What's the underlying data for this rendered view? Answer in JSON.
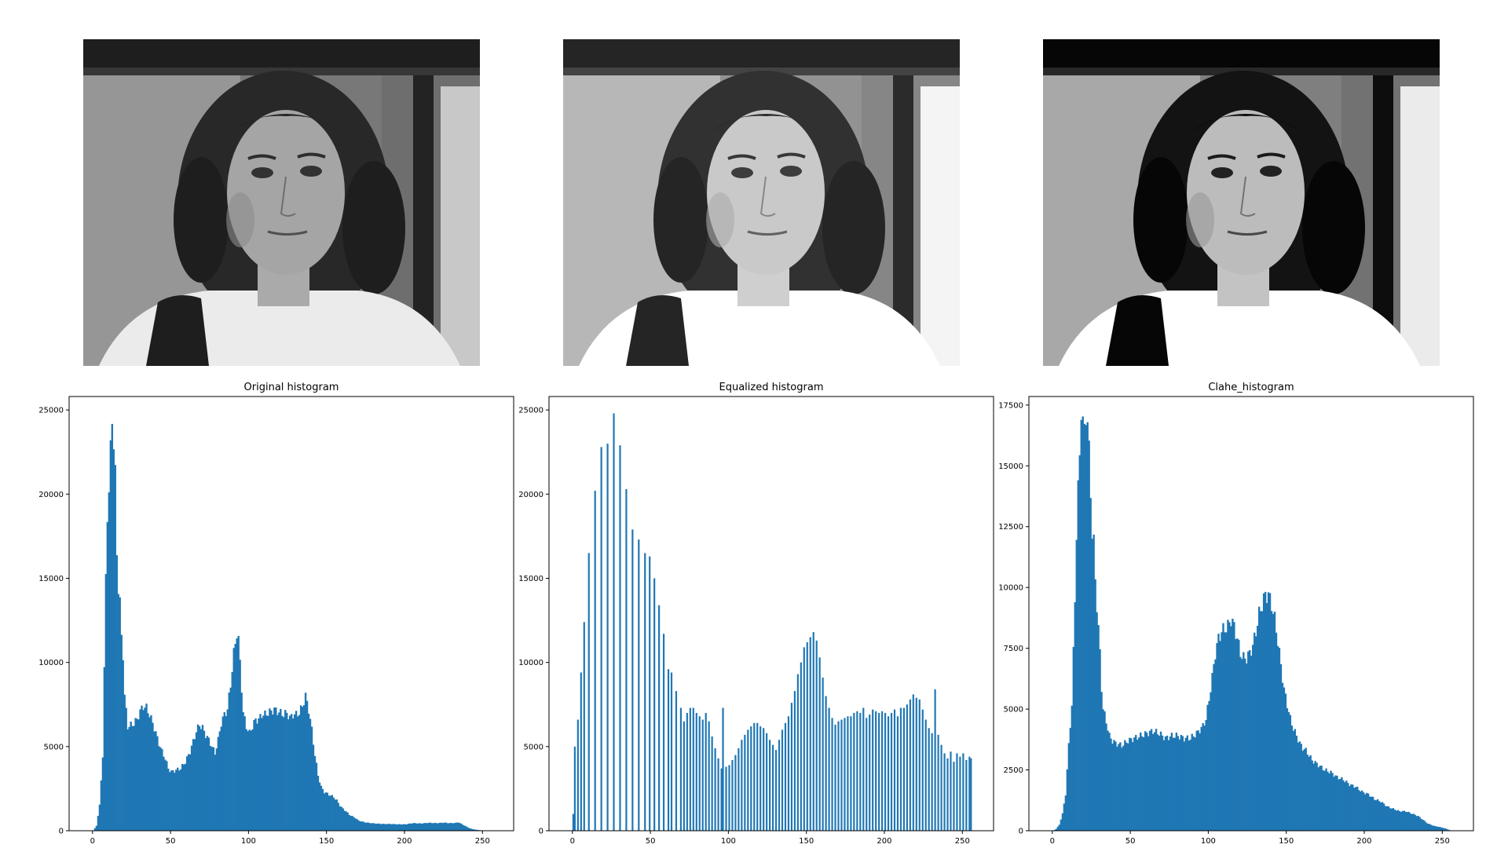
{
  "photos": [
    {
      "style": "original"
    },
    {
      "style": "equalized"
    },
    {
      "style": "clahe"
    }
  ],
  "chart_data": [
    {
      "type": "bar",
      "title": "Original histogram",
      "bar_color": "#1f77b4",
      "xlim": [
        -15,
        270
      ],
      "ylim": [
        0,
        25800
      ],
      "xticks": [
        0,
        50,
        100,
        150,
        200,
        250
      ],
      "yticks": [
        0,
        5000,
        10000,
        15000,
        20000,
        25000
      ],
      "curve": [
        [
          0,
          0
        ],
        [
          2,
          300
        ],
        [
          4,
          1500
        ],
        [
          6,
          4500
        ],
        [
          7,
          9500
        ],
        [
          8,
          15000
        ],
        [
          9,
          19000
        ],
        [
          10,
          20000
        ],
        [
          11,
          22500
        ],
        [
          12,
          24800
        ],
        [
          13,
          23000
        ],
        [
          14,
          21000
        ],
        [
          15,
          16500
        ],
        [
          16,
          14500
        ],
        [
          17,
          13500
        ],
        [
          18,
          11500
        ],
        [
          19,
          10500
        ],
        [
          20,
          8000
        ],
        [
          22,
          6200
        ],
        [
          25,
          6300
        ],
        [
          28,
          6600
        ],
        [
          30,
          7100
        ],
        [
          32,
          7400
        ],
        [
          34,
          7300
        ],
        [
          36,
          6900
        ],
        [
          38,
          6400
        ],
        [
          40,
          5800
        ],
        [
          42,
          5200
        ],
        [
          44,
          4700
        ],
        [
          46,
          4300
        ],
        [
          48,
          3700
        ],
        [
          50,
          3500
        ],
        [
          53,
          3600
        ],
        [
          56,
          3700
        ],
        [
          59,
          4100
        ],
        [
          62,
          4700
        ],
        [
          64,
          5300
        ],
        [
          66,
          5900
        ],
        [
          68,
          6300
        ],
        [
          70,
          6100
        ],
        [
          72,
          5700
        ],
        [
          74,
          5400
        ],
        [
          76,
          5000
        ],
        [
          78,
          4600
        ],
        [
          80,
          5400
        ],
        [
          82,
          6400
        ],
        [
          84,
          6900
        ],
        [
          86,
          7200
        ],
        [
          88,
          8700
        ],
        [
          90,
          10500
        ],
        [
          92,
          11800
        ],
        [
          93,
          11300
        ],
        [
          94,
          10000
        ],
        [
          96,
          7000
        ],
        [
          98,
          6200
        ],
        [
          100,
          5800
        ],
        [
          102,
          6200
        ],
        [
          104,
          6600
        ],
        [
          106,
          6600
        ],
        [
          108,
          6900
        ],
        [
          110,
          6900
        ],
        [
          112,
          7000
        ],
        [
          114,
          7100
        ],
        [
          116,
          7200
        ],
        [
          118,
          7100
        ],
        [
          120,
          7000
        ],
        [
          122,
          6900
        ],
        [
          124,
          7000
        ],
        [
          126,
          6700
        ],
        [
          128,
          6900
        ],
        [
          130,
          6900
        ],
        [
          132,
          7000
        ],
        [
          134,
          7400
        ],
        [
          136,
          8000
        ],
        [
          138,
          7200
        ],
        [
          140,
          6000
        ],
        [
          142,
          4500
        ],
        [
          144,
          3300
        ],
        [
          146,
          2600
        ],
        [
          148,
          2300
        ],
        [
          150,
          2200
        ],
        [
          152,
          2100
        ],
        [
          154,
          2000
        ],
        [
          156,
          1800
        ],
        [
          158,
          1500
        ],
        [
          160,
          1300
        ],
        [
          162,
          1150
        ],
        [
          164,
          950
        ],
        [
          166,
          850
        ],
        [
          168,
          750
        ],
        [
          170,
          600
        ],
        [
          174,
          500
        ],
        [
          178,
          450
        ],
        [
          182,
          420
        ],
        [
          186,
          400
        ],
        [
          190,
          400
        ],
        [
          196,
          380
        ],
        [
          200,
          380
        ],
        [
          205,
          450
        ],
        [
          210,
          430
        ],
        [
          215,
          470
        ],
        [
          220,
          450
        ],
        [
          225,
          480
        ],
        [
          228,
          450
        ],
        [
          232,
          460
        ],
        [
          234,
          500
        ],
        [
          236,
          400
        ],
        [
          238,
          300
        ],
        [
          240,
          200
        ],
        [
          242,
          120
        ],
        [
          244,
          80
        ],
        [
          246,
          50
        ],
        [
          248,
          30
        ],
        [
          250,
          20
        ],
        [
          255,
          0
        ]
      ]
    },
    {
      "type": "bar",
      "title": "Equalized histogram",
      "bar_color": "#1f77b4",
      "xlim": [
        -15,
        270
      ],
      "ylim": [
        0,
        25800
      ],
      "xticks": [
        0,
        50,
        100,
        150,
        200,
        250
      ],
      "yticks": [
        0,
        5000,
        10000,
        15000,
        20000,
        25000
      ],
      "spikes": [
        [
          0,
          1000
        ],
        [
          1,
          5000
        ],
        [
          3,
          6600
        ],
        [
          5,
          9400
        ],
        [
          7,
          12400
        ],
        [
          10,
          16500
        ],
        [
          14,
          20200
        ],
        [
          18,
          22800
        ],
        [
          22,
          23000
        ],
        [
          26,
          24800
        ],
        [
          30,
          22900
        ],
        [
          34,
          20300
        ],
        [
          38,
          17900
        ],
        [
          42,
          17300
        ],
        [
          46,
          16500
        ],
        [
          49,
          16300
        ],
        [
          52,
          15000
        ],
        [
          55,
          13400
        ],
        [
          58,
          11700
        ],
        [
          61,
          9600
        ],
        [
          63,
          9400
        ],
        [
          66,
          8300
        ],
        [
          69,
          7300
        ],
        [
          71,
          6500
        ],
        [
          73,
          7000
        ],
        [
          75,
          7300
        ],
        [
          77,
          7300
        ],
        [
          79,
          7000
        ],
        [
          81,
          6800
        ],
        [
          83,
          6600
        ],
        [
          85,
          7000
        ],
        [
          87,
          6500
        ],
        [
          89,
          5600
        ],
        [
          91,
          4900
        ],
        [
          93,
          4300
        ],
        [
          95,
          3700
        ],
        [
          96,
          7300
        ],
        [
          98,
          3800
        ],
        [
          100,
          3900
        ],
        [
          102,
          4200
        ],
        [
          104,
          4500
        ],
        [
          106,
          4900
        ],
        [
          108,
          5400
        ],
        [
          110,
          5700
        ],
        [
          112,
          6000
        ],
        [
          114,
          6200
        ],
        [
          116,
          6400
        ],
        [
          118,
          6400
        ],
        [
          120,
          6200
        ],
        [
          122,
          6100
        ],
        [
          124,
          5800
        ],
        [
          126,
          5400
        ],
        [
          128,
          5100
        ],
        [
          130,
          4800
        ],
        [
          132,
          5400
        ],
        [
          134,
          6000
        ],
        [
          136,
          6400
        ],
        [
          138,
          6800
        ],
        [
          140,
          7600
        ],
        [
          142,
          8300
        ],
        [
          144,
          9300
        ],
        [
          146,
          10000
        ],
        [
          148,
          10900
        ],
        [
          150,
          11200
        ],
        [
          152,
          11500
        ],
        [
          154,
          11800
        ],
        [
          156,
          11300
        ],
        [
          158,
          10300
        ],
        [
          160,
          9100
        ],
        [
          162,
          8000
        ],
        [
          164,
          7300
        ],
        [
          166,
          6700
        ],
        [
          168,
          6300
        ],
        [
          170,
          6500
        ],
        [
          172,
          6600
        ],
        [
          174,
          6700
        ],
        [
          176,
          6800
        ],
        [
          178,
          6800
        ],
        [
          180,
          7000
        ],
        [
          182,
          7100
        ],
        [
          184,
          7000
        ],
        [
          186,
          7300
        ],
        [
          188,
          6700
        ],
        [
          190,
          6900
        ],
        [
          192,
          7200
        ],
        [
          194,
          7100
        ],
        [
          196,
          7000
        ],
        [
          198,
          7100
        ],
        [
          200,
          7000
        ],
        [
          202,
          6800
        ],
        [
          204,
          7000
        ],
        [
          206,
          7200
        ],
        [
          208,
          6800
        ],
        [
          210,
          7300
        ],
        [
          212,
          7300
        ],
        [
          214,
          7500
        ],
        [
          216,
          7800
        ],
        [
          218,
          8100
        ],
        [
          220,
          7900
        ],
        [
          222,
          7800
        ],
        [
          224,
          7200
        ],
        [
          226,
          6600
        ],
        [
          228,
          6100
        ],
        [
          230,
          5800
        ],
        [
          232,
          8400
        ],
        [
          234,
          5700
        ],
        [
          236,
          5100
        ],
        [
          238,
          4600
        ],
        [
          240,
          4300
        ],
        [
          242,
          4700
        ],
        [
          244,
          4100
        ],
        [
          246,
          4600
        ],
        [
          248,
          4400
        ],
        [
          250,
          4600
        ],
        [
          252,
          4200
        ],
        [
          254,
          4400
        ],
        [
          255,
          4300
        ]
      ]
    },
    {
      "type": "bar",
      "title": "Clahe_histogram",
      "bar_color": "#1f77b4",
      "xlim": [
        -15,
        270
      ],
      "ylim": [
        0,
        17850
      ],
      "xticks": [
        0,
        50,
        100,
        150,
        200,
        250
      ],
      "yticks": [
        0,
        2500,
        5000,
        7500,
        10000,
        12500,
        15000,
        17500
      ],
      "curve": [
        [
          0,
          0
        ],
        [
          2,
          80
        ],
        [
          4,
          250
        ],
        [
          6,
          700
        ],
        [
          8,
          1500
        ],
        [
          10,
          3500
        ],
        [
          12,
          5200
        ],
        [
          13,
          7300
        ],
        [
          14,
          9500
        ],
        [
          15,
          12300
        ],
        [
          16,
          14000
        ],
        [
          17,
          15300
        ],
        [
          18,
          17500
        ],
        [
          19,
          16800
        ],
        [
          20,
          16300
        ],
        [
          21,
          17200
        ],
        [
          22,
          16900
        ],
        [
          23,
          15500
        ],
        [
          24,
          13900
        ],
        [
          25,
          12300
        ],
        [
          26,
          11800
        ],
        [
          27,
          10300
        ],
        [
          28,
          9300
        ],
        [
          29,
          8300
        ],
        [
          30,
          7300
        ],
        [
          31,
          5900
        ],
        [
          32,
          5000
        ],
        [
          34,
          4500
        ],
        [
          36,
          3900
        ],
        [
          38,
          3700
        ],
        [
          40,
          3600
        ],
        [
          44,
          3500
        ],
        [
          48,
          3700
        ],
        [
          52,
          3800
        ],
        [
          56,
          3900
        ],
        [
          60,
          4000
        ],
        [
          64,
          4100
        ],
        [
          68,
          4000
        ],
        [
          72,
          3800
        ],
        [
          76,
          3900
        ],
        [
          80,
          3900
        ],
        [
          84,
          3800
        ],
        [
          88,
          3800
        ],
        [
          92,
          4000
        ],
        [
          96,
          4300
        ],
        [
          98,
          4600
        ],
        [
          100,
          5400
        ],
        [
          102,
          6300
        ],
        [
          104,
          7300
        ],
        [
          106,
          7900
        ],
        [
          108,
          8200
        ],
        [
          110,
          8300
        ],
        [
          112,
          8400
        ],
        [
          114,
          8700
        ],
        [
          116,
          8400
        ],
        [
          118,
          7900
        ],
        [
          120,
          7300
        ],
        [
          122,
          7100
        ],
        [
          124,
          7100
        ],
        [
          126,
          7300
        ],
        [
          128,
          7600
        ],
        [
          130,
          8200
        ],
        [
          132,
          8900
        ],
        [
          134,
          9300
        ],
        [
          136,
          9700
        ],
        [
          138,
          9700
        ],
        [
          140,
          9300
        ],
        [
          142,
          8700
        ],
        [
          144,
          7800
        ],
        [
          146,
          6800
        ],
        [
          148,
          5800
        ],
        [
          150,
          5200
        ],
        [
          152,
          4600
        ],
        [
          154,
          4200
        ],
        [
          156,
          3900
        ],
        [
          158,
          3600
        ],
        [
          160,
          3400
        ],
        [
          162,
          3300
        ],
        [
          164,
          3100
        ],
        [
          166,
          2900
        ],
        [
          168,
          2800
        ],
        [
          170,
          2700
        ],
        [
          174,
          2500
        ],
        [
          178,
          2400
        ],
        [
          182,
          2200
        ],
        [
          186,
          2100
        ],
        [
          190,
          1900
        ],
        [
          194,
          1800
        ],
        [
          198,
          1600
        ],
        [
          202,
          1500
        ],
        [
          206,
          1300
        ],
        [
          210,
          1200
        ],
        [
          214,
          1000
        ],
        [
          218,
          900
        ],
        [
          222,
          800
        ],
        [
          226,
          800
        ],
        [
          230,
          700
        ],
        [
          234,
          600
        ],
        [
          238,
          400
        ],
        [
          240,
          300
        ],
        [
          244,
          200
        ],
        [
          248,
          150
        ],
        [
          252,
          80
        ],
        [
          255,
          0
        ]
      ]
    }
  ]
}
